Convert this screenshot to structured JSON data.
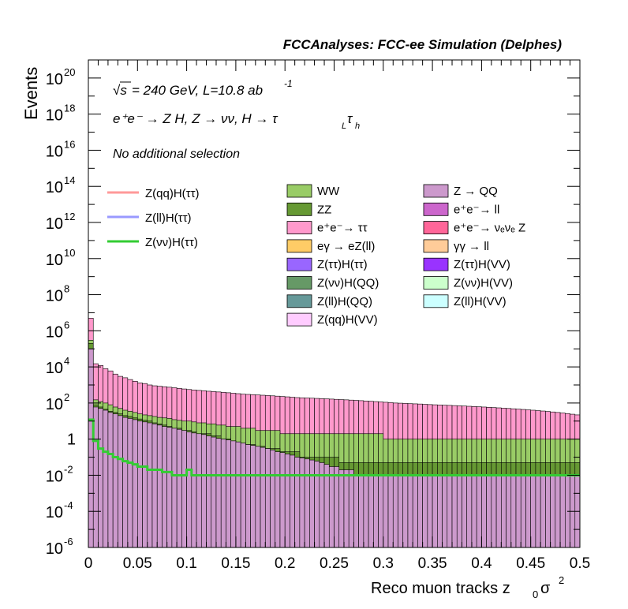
{
  "header": "FCCAnalyses: FCC-ee Simulation (Delphes)",
  "annotations": {
    "line1_sqrt": "√s",
    "line1_rest": " = 240 GeV, L=10.8 ab",
    "line1_exp": "-1",
    "line2": "e⁺e⁻ → Z H, Z → νν, H → τ_L τ_h",
    "line2_main": "e⁺e⁻ → Z H, Z → νν, H → τ",
    "line2_sub1": "L",
    "line2_tau": "τ",
    "line2_sub2": "h",
    "line3": "No additional selection"
  },
  "colors": {
    "WW": "#99cc66",
    "ZZ": "#669933",
    "tautau": "#ff99cc",
    "egamma": "#ffcc66",
    "Ztautau_Htautau": "#9966ff",
    "Znunu_HQQ": "#669966",
    "Zll_HQQ": "#669999",
    "Zqq_HVV": "#ffccff",
    "ZQQ": "#cc99cc",
    "ll": "#cc66cc",
    "nunuZ": "#ff6699",
    "gammagamma": "#ffcc99",
    "Ztautau_HVV": "#9933ff",
    "Znunu_HVV": "#ccffcc",
    "Zll_HVV": "#ccffff",
    "sig_qq": "#ff9999",
    "sig_ll": "#9999ff",
    "sig_nunu": "#33cc33"
  },
  "chart_data": {
    "type": "bar",
    "title": "FCCAnalyses: FCC-ee Simulation (Delphes)",
    "xlabel": "Reco muon tracks z",
    "xlabel_sub": "0",
    "xlabel_tail": " σ",
    "xlabel_sup": "2",
    "ylabel": "Events",
    "xlim": [
      0,
      0.5
    ],
    "ylim": [
      1e-06,
      1e+21
    ],
    "y_scale": "log",
    "x_ticks": [
      "0",
      "0.05",
      "0.1",
      "0.15",
      "0.2",
      "0.25",
      "0.3",
      "0.35",
      "0.4",
      "0.45",
      "0.5"
    ],
    "y_ticks": [
      {
        "base": "10",
        "exp": "-6"
      },
      {
        "base": "10",
        "exp": "-4"
      },
      {
        "base": "10",
        "exp": "-2"
      },
      {
        "base": "1",
        "exp": ""
      },
      {
        "base": "10",
        "exp": "2"
      },
      {
        "base": "10",
        "exp": "4"
      },
      {
        "base": "10",
        "exp": "6"
      },
      {
        "base": "10",
        "exp": "8"
      },
      {
        "base": "10",
        "exp": "10"
      },
      {
        "base": "10",
        "exp": "12"
      },
      {
        "base": "10",
        "exp": "14"
      },
      {
        "base": "10",
        "exp": "16"
      },
      {
        "base": "10",
        "exp": "18"
      },
      {
        "base": "10",
        "exp": "20"
      }
    ],
    "bins": 100,
    "stack_totals": [
      5000000.0,
      15000.0,
      12000.0,
      8000.0,
      6000.0,
      4000.0,
      3000.0,
      2500.0,
      2000.0,
      1600.0,
      1300.0,
      1200.0,
      1000.0,
      900,
      850,
      800,
      750,
      700,
      650,
      600,
      560,
      530,
      500,
      480,
      450,
      430,
      410,
      390,
      370,
      350,
      330,
      310,
      300,
      290,
      280,
      270,
      260,
      250,
      240,
      230,
      220,
      210,
      200,
      195,
      190,
      185,
      180,
      175,
      170,
      165,
      160,
      155,
      150,
      145,
      140,
      135,
      130,
      125,
      120,
      115,
      110,
      105,
      100,
      98,
      95,
      92,
      90,
      88,
      85,
      82,
      80,
      78,
      76,
      74,
      72,
      70,
      68,
      66,
      64,
      62,
      60,
      58,
      56,
      54,
      52,
      50,
      48,
      46,
      44,
      42,
      40,
      38,
      36,
      34,
      32,
      30,
      28,
      26,
      24,
      22
    ],
    "WW_top": [
      300000.0,
      150,
      120,
      100,
      80,
      60,
      50,
      40,
      35,
      30,
      25,
      22,
      20,
      18,
      16,
      15,
      14,
      12,
      11,
      10,
      10,
      9,
      8,
      8,
      7,
      7,
      6,
      6,
      5,
      5,
      5,
      4,
      4,
      4,
      3,
      3,
      3,
      3,
      3,
      2,
      2,
      2,
      2,
      2,
      2,
      2,
      2,
      2,
      2,
      2,
      2,
      2,
      2,
      2,
      2,
      2,
      2,
      2,
      2,
      2,
      1,
      1,
      1,
      1,
      1,
      1,
      1,
      1,
      1,
      1,
      1,
      1,
      1,
      1,
      1,
      1,
      1,
      1,
      1,
      1,
      1,
      1,
      1,
      1,
      1,
      1,
      1,
      1,
      1,
      1,
      1,
      1,
      1,
      1,
      1,
      1,
      1,
      1,
      1,
      1
    ],
    "ZZ_top": [
      200000.0,
      80,
      60,
      45,
      35,
      30,
      25,
      20,
      18,
      15,
      13,
      11,
      10,
      8,
      7,
      6,
      5,
      4,
      4,
      3,
      3,
      2.5,
      2,
      2,
      2,
      1.5,
      1.5,
      1,
      1,
      0.8,
      0.7,
      0.6,
      0.5,
      0.5,
      0.4,
      0.4,
      0.3,
      0.3,
      0.3,
      0.2,
      0.2,
      0.2,
      0.2,
      0.1,
      0.1,
      0.1,
      0.1,
      0.1,
      0.1,
      0.1,
      0.1,
      0.05,
      0.05,
      0.05,
      0.05,
      0.05,
      0.05,
      0.05,
      0.05,
      0.05,
      0.05,
      0.05,
      0.05,
      0.05,
      0.05,
      0.05,
      0.05,
      0.05,
      0.05,
      0.05,
      0.05,
      0.05,
      0.05,
      0.05,
      0.05,
      0.05,
      0.05,
      0.05,
      0.05,
      0.05,
      0.05,
      0.05,
      0.05,
      0.05,
      0.05,
      0.05,
      0.05,
      0.05,
      0.05,
      0.05,
      0.05,
      0.05,
      0.05,
      0.05,
      0.05,
      0.05,
      0.05,
      0.05,
      0.05,
      0.05
    ],
    "ZQQ_top": [
      100000.0,
      60,
      50,
      40,
      30,
      25,
      20,
      16,
      14,
      12,
      10,
      9,
      8,
      7,
      6,
      5,
      4.5,
      4,
      3.5,
      3,
      2.5,
      2.2,
      2,
      1.8,
      1.5,
      1.3,
      1.1,
      1,
      0.9,
      0.8,
      0.7,
      0.6,
      0.5,
      0.45,
      0.4,
      0.35,
      0.3,
      0.25,
      0.2,
      0.18,
      0.15,
      0.13,
      0.1,
      0.09,
      0.08,
      0.07,
      0.06,
      0.05,
      0.04,
      0.03,
      0.03,
      0.02,
      0.02,
      0.02,
      0.01,
      0.01,
      0.01,
      0.01,
      0.01,
      0.01,
      0.01,
      0.01,
      0.01,
      0.01,
      0.01,
      0.01,
      0.01,
      0.01,
      0.01,
      0.01,
      0.01,
      0.01,
      0.01,
      0.01,
      0.01,
      0.01,
      0.01,
      0.01,
      0.01,
      0.01,
      0.01,
      0.01,
      0.01,
      0.01,
      0.01,
      0.01,
      0.01,
      0.01,
      0.01,
      0.01,
      0.01,
      0.01,
      0.01,
      0.01,
      0.01,
      0.01,
      0.01,
      0.01,
      0.01,
      0.01
    ],
    "signal_nunu": [
      12,
      0.8,
      0.3,
      0.2,
      0.15,
      0.1,
      0.08,
      0.06,
      0.05,
      0.04,
      0.03,
      0.03,
      0.02,
      0.02,
      0.02,
      0.015,
      0.015,
      0.01,
      0.01,
      0.01,
      0.02,
      0.01,
      0.01,
      0.01,
      0.01,
      0.01,
      0.01,
      0.01,
      0.01,
      0.01,
      0.01,
      0.01,
      0.01,
      0.01,
      0.01,
      0.01,
      0.01,
      0.01,
      0.01,
      0.01,
      0.01,
      0.01,
      0.01,
      0.01,
      0.01,
      0.01,
      0.01,
      0.01,
      0.01,
      0.01,
      0.01,
      0.01,
      0.01,
      0.01,
      0.01,
      0.01,
      0.01,
      0.01,
      0.01,
      0.01,
      0.01,
      0.01,
      0.01,
      0.01,
      0.01,
      0.01,
      0.01,
      0.01,
      0.01,
      0.01,
      0.01,
      0.01,
      0.01,
      0.01,
      0.01,
      0.01,
      0.01,
      0.01,
      0.01,
      0.01,
      0.01,
      0.01,
      0.01,
      0.01,
      0.01,
      0.01,
      0.01,
      0.01,
      0.01,
      0.01,
      0.01,
      0.01,
      0.01,
      0.01,
      0.01,
      0.01,
      0.01,
      0.01,
      0.01,
      0.01
    ]
  },
  "legend": {
    "lines": [
      {
        "label": "Z(qq)H(ττ)",
        "color": "#ff9999"
      },
      {
        "label": "Z(ll)H(ττ)",
        "color": "#9999ff"
      },
      {
        "label": "Z(νν)H(ττ)",
        "color": "#33cc33"
      }
    ],
    "left": [
      {
        "label": "WW",
        "color": "#99cc66"
      },
      {
        "label": "ZZ",
        "color": "#669933"
      },
      {
        "label": "e⁺e⁻→ ττ",
        "color": "#ff99cc"
      },
      {
        "label": "eγ → eZ(ll)",
        "color": "#ffcc66"
      },
      {
        "label": "Z(ττ)H(ττ)",
        "color": "#9966ff"
      },
      {
        "label": "Z(νν)H(QQ)",
        "color": "#669966"
      },
      {
        "label": "Z(ll)H(QQ)",
        "color": "#669999"
      },
      {
        "label": "Z(qq)H(VV)",
        "color": "#ffccff"
      }
    ],
    "right": [
      {
        "label": "Z → QQ",
        "color": "#cc99cc"
      },
      {
        "label": "e⁺e⁻→ ll",
        "color": "#cc66cc"
      },
      {
        "label": "e⁺e⁻→ νₑνₑ Z",
        "color": "#ff6699"
      },
      {
        "label": "γγ → ll",
        "color": "#ffcc99"
      },
      {
        "label": "Z(ττ)H(VV)",
        "color": "#9933ff"
      },
      {
        "label": "Z(νν)H(VV)",
        "color": "#ccffcc"
      },
      {
        "label": "Z(ll)H(VV)",
        "color": "#ccffff"
      }
    ]
  }
}
